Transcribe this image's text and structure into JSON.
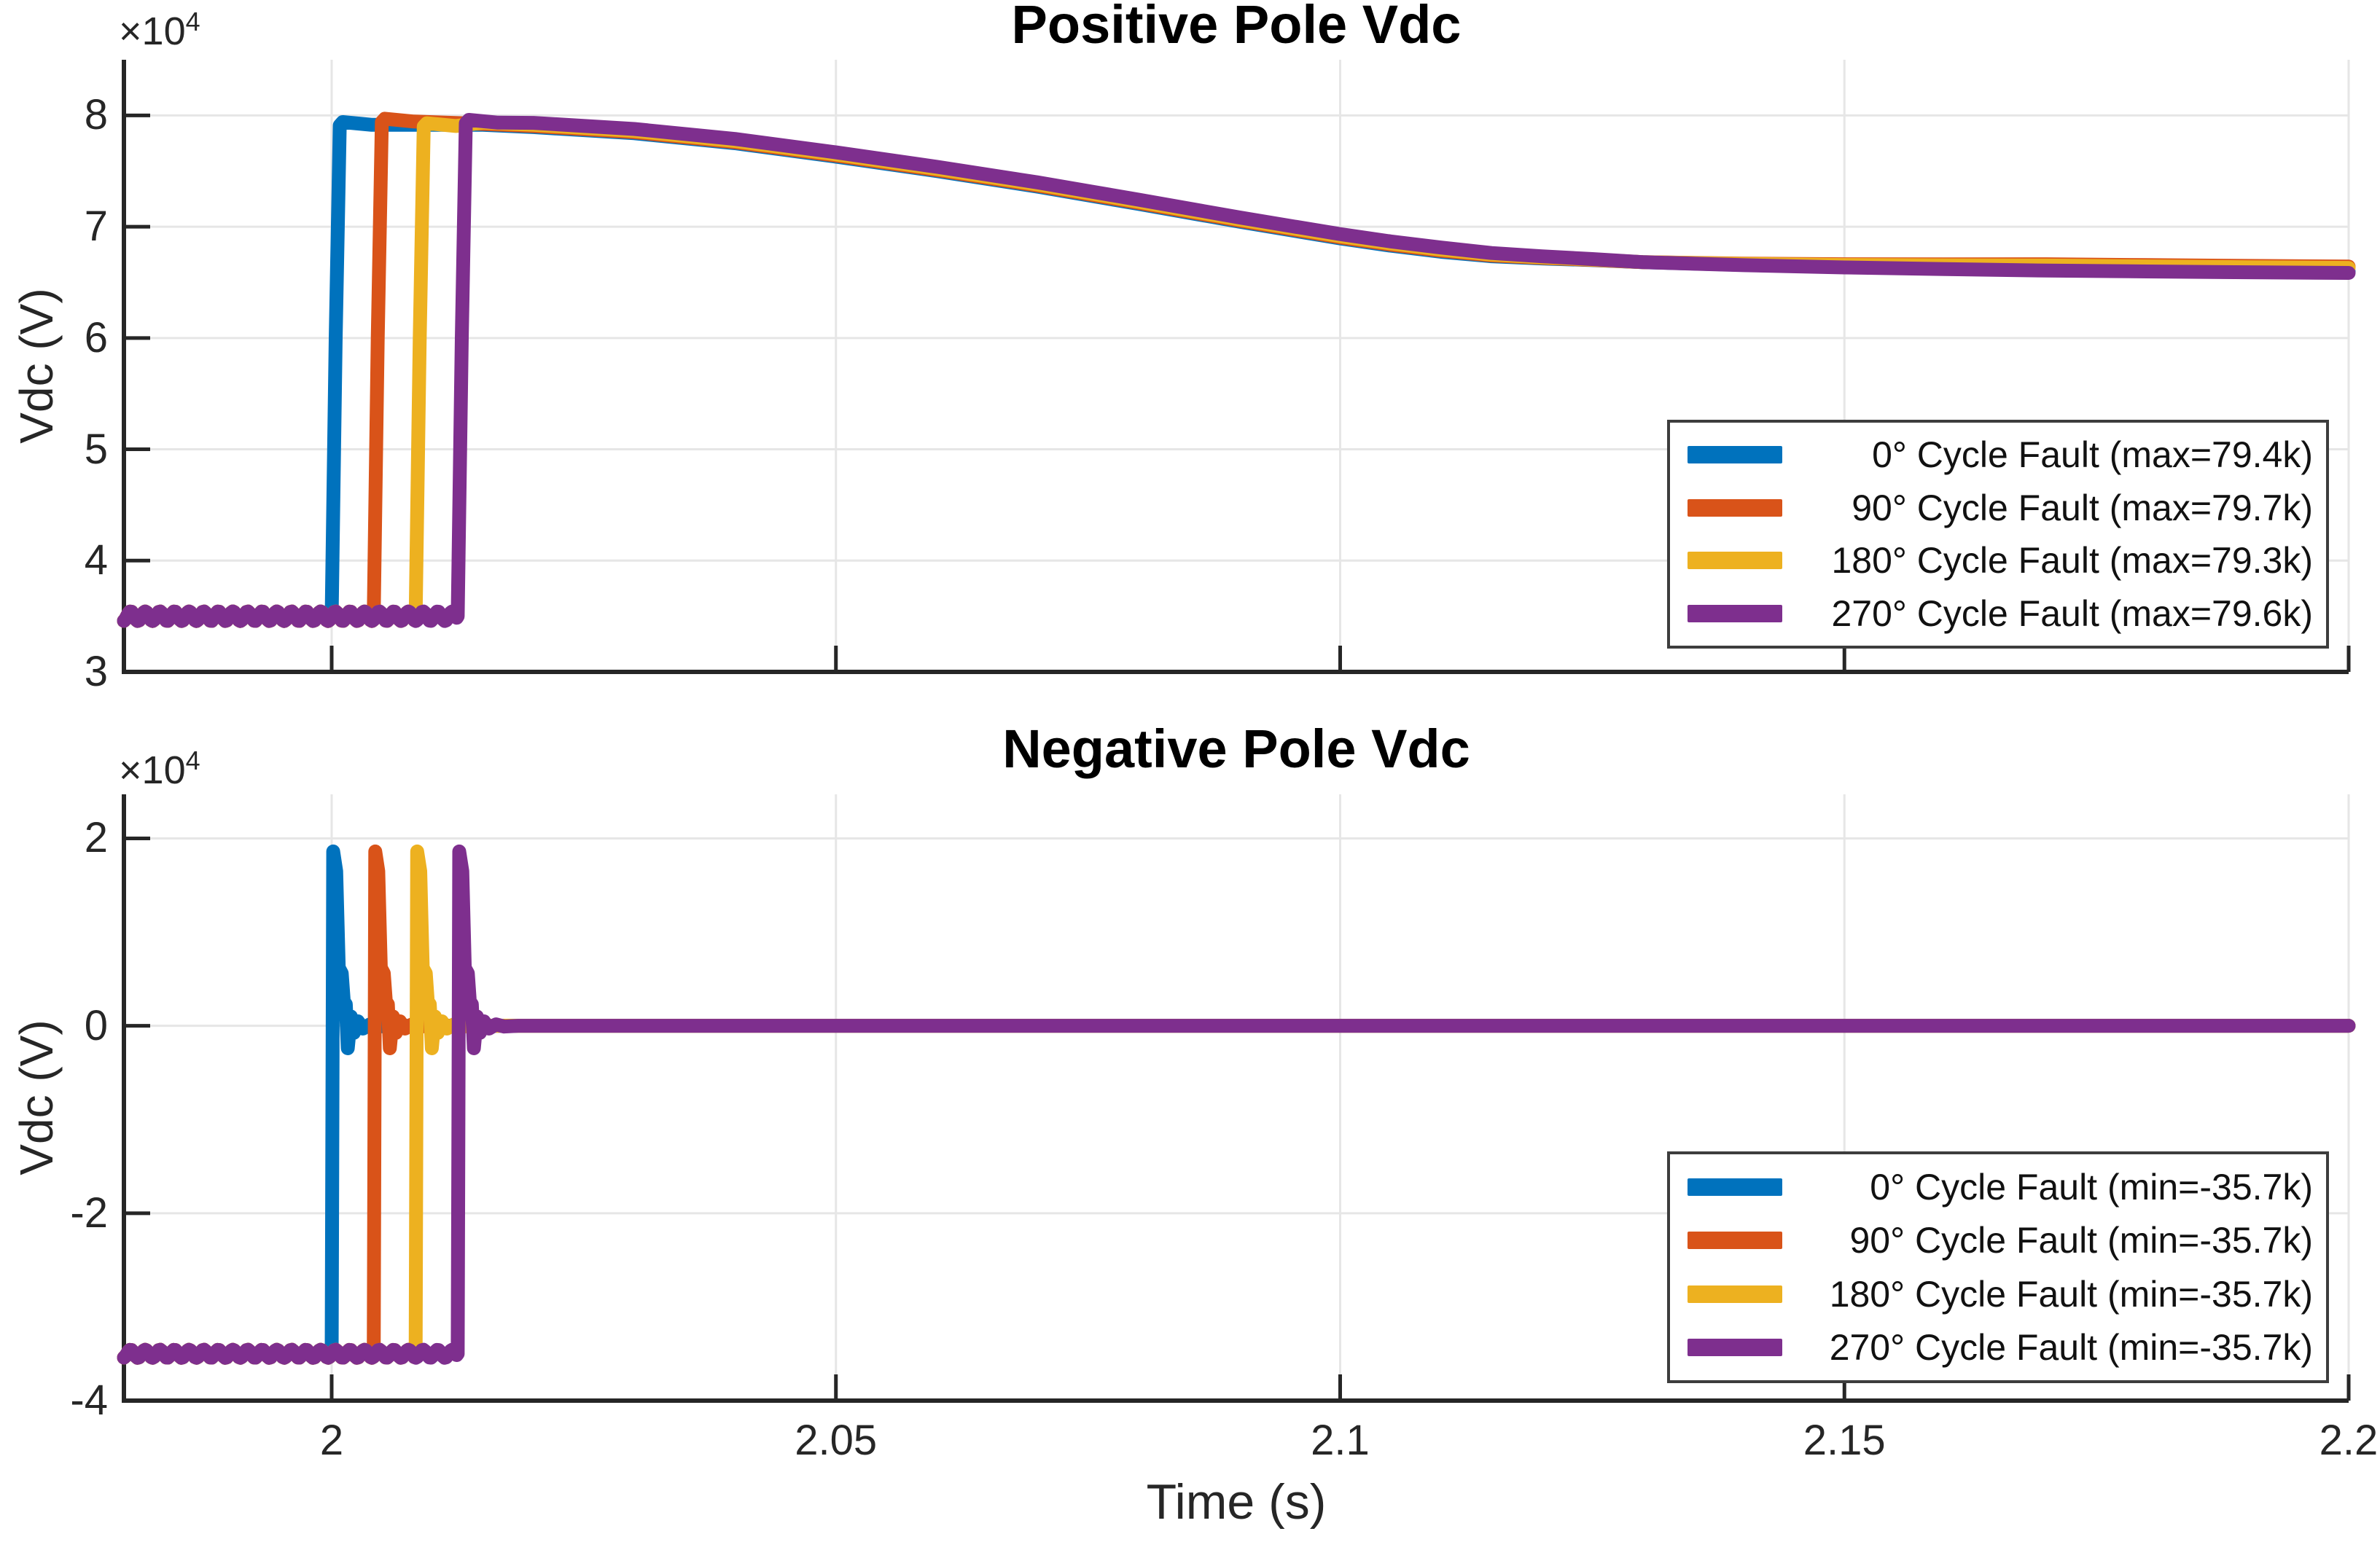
{
  "figure": {
    "background": "#ffffff",
    "axis_color": "#262626",
    "grid_color": "#e6e6e6",
    "tick_label_color": "#262626",
    "xlabel": "Time (s)",
    "xlim": [
      1.9794,
      2.2
    ],
    "x_ticks": [
      2,
      2.05,
      2.1,
      2.15,
      2.2
    ],
    "x_tick_labels": [
      "2",
      "2.05",
      "2.1",
      "2.15",
      "2.2"
    ]
  },
  "chart_data": [
    {
      "type": "line",
      "title": "Positive Pole Vdc",
      "ylabel": "Vdc (V)",
      "exponent": {
        "base": "×10",
        "sup": "4"
      },
      "ylim": [
        30000,
        85000
      ],
      "y_ticks": [
        30000,
        40000,
        50000,
        60000,
        70000,
        80000
      ],
      "y_tick_labels": [
        "3",
        "4",
        "5",
        "6",
        "7",
        "8"
      ],
      "grid": true,
      "legend_position": "lower-right-inside",
      "baseline": 35000,
      "ripple_amplitude": 430,
      "ripple_period": 0.00145,
      "legend": [
        "0° Cycle Fault (max=79.4k)",
        "90° Cycle Fault (max=79.7k)",
        "180° Cycle Fault (max=79.3k)",
        "270° Cycle Fault (max=79.6k)"
      ],
      "series": [
        {
          "name": "0° Cycle Fault",
          "color": "#0072BD",
          "fault_time": 2.0,
          "peak": 79400,
          "mid_offset": 0,
          "tail_offset": 0
        },
        {
          "name": "90° Cycle Fault",
          "color": "#D95319",
          "fault_time": 2.00417,
          "peak": 79700,
          "mid_offset": 90,
          "tail_offset": 450
        },
        {
          "name": "180° Cycle Fault",
          "color": "#EDB120",
          "fault_time": 2.00833,
          "peak": 79300,
          "mid_offset": 200,
          "tail_offset": 330
        },
        {
          "name": "270° Cycle Fault",
          "color": "#7E2F8E",
          "fault_time": 2.0125,
          "peak": 79600,
          "mid_offset": 380,
          "tail_offset": -120
        }
      ],
      "decay_points": [
        [
          2.015,
          79150
        ],
        [
          2.02,
          78950
        ],
        [
          2.03,
          78400
        ],
        [
          2.04,
          77500
        ],
        [
          2.05,
          76300
        ],
        [
          2.06,
          75000
        ],
        [
          2.07,
          73600
        ],
        [
          2.08,
          72050
        ],
        [
          2.09,
          70450
        ],
        [
          2.1,
          68950
        ],
        [
          2.105,
          68300
        ],
        [
          2.11,
          67750
        ],
        [
          2.115,
          67350
        ],
        [
          2.12,
          67150
        ],
        [
          2.125,
          67000
        ],
        [
          2.13,
          66820
        ],
        [
          2.14,
          66570
        ],
        [
          2.15,
          66400
        ],
        [
          2.16,
          66280
        ],
        [
          2.17,
          66180
        ],
        [
          2.18,
          66100
        ],
        [
          2.19,
          66030
        ],
        [
          2.2,
          65970
        ]
      ]
    },
    {
      "type": "line",
      "title": "Negative Pole Vdc",
      "ylabel": "Vdc (V)",
      "exponent": {
        "base": "×10",
        "sup": "4"
      },
      "ylim": [
        -40000,
        24700
      ],
      "y_ticks": [
        -40000,
        -20000,
        0,
        20000
      ],
      "y_tick_labels": [
        "-4",
        "-2",
        "0",
        "2"
      ],
      "grid": true,
      "legend_position": "lower-right-inside",
      "baseline": -35000,
      "ripple_amplitude": 430,
      "ripple_period": 0.00145,
      "settle_value": 0,
      "spike_peak": 18600,
      "legend": [
        "0° Cycle Fault (min=-35.7k)",
        "90° Cycle Fault (min=-35.7k)",
        "180° Cycle Fault (min=-35.7k)",
        "270° Cycle Fault (min=-35.7k)"
      ],
      "series": [
        {
          "name": "0° Cycle Fault",
          "color": "#0072BD",
          "fault_time": 2.0,
          "min": -35700
        },
        {
          "name": "90° Cycle Fault",
          "color": "#D95319",
          "fault_time": 2.00417,
          "min": -35700
        },
        {
          "name": "180° Cycle Fault",
          "color": "#EDB120",
          "fault_time": 2.00833,
          "min": -35700
        },
        {
          "name": "270° Cycle Fault",
          "color": "#7E2F8E",
          "fault_time": 2.0125,
          "min": -35700
        }
      ],
      "ring_points": [
        [
          0.00015,
          18600
        ],
        [
          0.00045,
          16500
        ],
        [
          0.0007,
          6200
        ],
        [
          0.001,
          5600
        ],
        [
          0.0012,
          2600
        ],
        [
          0.0014,
          2300
        ],
        [
          0.0016,
          -2400
        ],
        [
          0.0019,
          1000
        ],
        [
          0.0022,
          -750
        ],
        [
          0.0026,
          480
        ],
        [
          0.0031,
          -300
        ],
        [
          0.0038,
          160
        ],
        [
          0.0046,
          -80
        ],
        [
          0.006,
          0
        ]
      ]
    }
  ]
}
